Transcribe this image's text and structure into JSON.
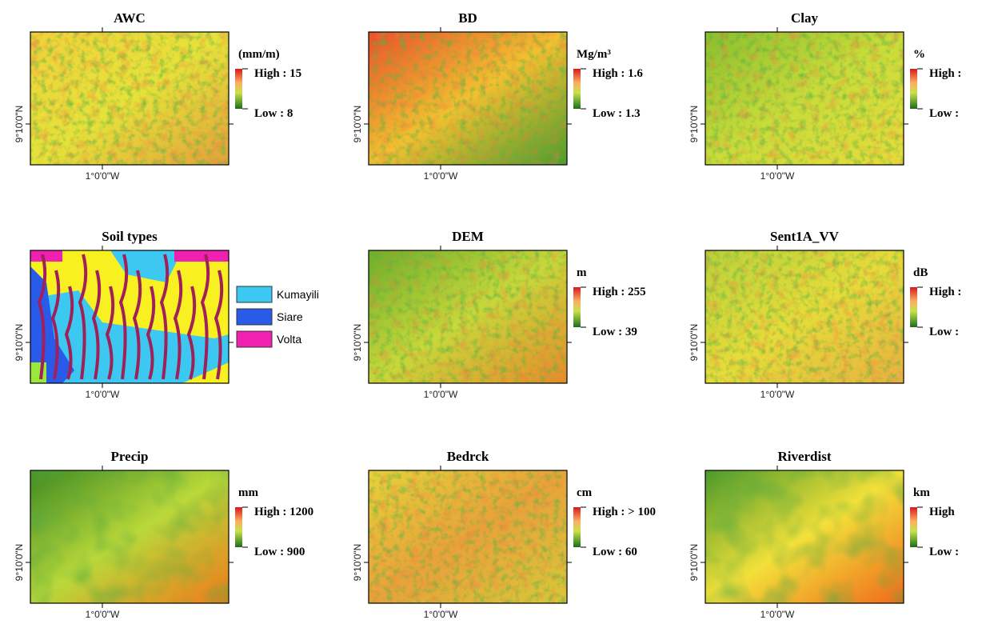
{
  "panels": [
    {
      "title": "AWC",
      "unit": "(mm/m)",
      "high": "High : 15",
      "low": "Low : 8",
      "lat": "9°10'0\"N",
      "lon": "1°0'0\"W"
    },
    {
      "title": "BD",
      "unit": "Mg/m³",
      "high": "High : 1.6",
      "low": "Low : 1.3",
      "lat": "9°10'0\"N",
      "lon": "1°0'0\"W"
    },
    {
      "title": "Clay",
      "unit": "%",
      "high": "High :",
      "low": "Low :",
      "lat": "9°10'0\"N",
      "lon": "1°0'0\"W"
    },
    {
      "title": "Soil types",
      "legend": [
        "Kumayili",
        "Siare",
        "Volta"
      ],
      "lat": "9°10'0\"N",
      "lon": "1°0'0\"W"
    },
    {
      "title": "DEM",
      "unit": "m",
      "high": "High : 255",
      "low": "Low : 39",
      "lat": "9°10'0\"N",
      "lon": "1°0'0\"W"
    },
    {
      "title": "Sent1A_VV",
      "unit": "dB",
      "high": "High :",
      "low": "Low :",
      "lat": "9°10'0\"N",
      "lon": "1°0'0\"W"
    },
    {
      "title": "Precip",
      "unit": "mm",
      "high": "High : 1200",
      "low": "Low : 900",
      "lat": "9°10'0\"N",
      "lon": "1°0'0\"W"
    },
    {
      "title": "Bedrck",
      "unit": "cm",
      "high": "High : > 100",
      "low": "Low : 60",
      "lat": "9°10'0\"N",
      "lon": "1°0'0\"W"
    },
    {
      "title": "Riverdist",
      "unit": "km",
      "high": "High",
      "low": "Low :",
      "lat": "9°10'0\"N",
      "lon": "1°0'0\"W"
    }
  ]
}
